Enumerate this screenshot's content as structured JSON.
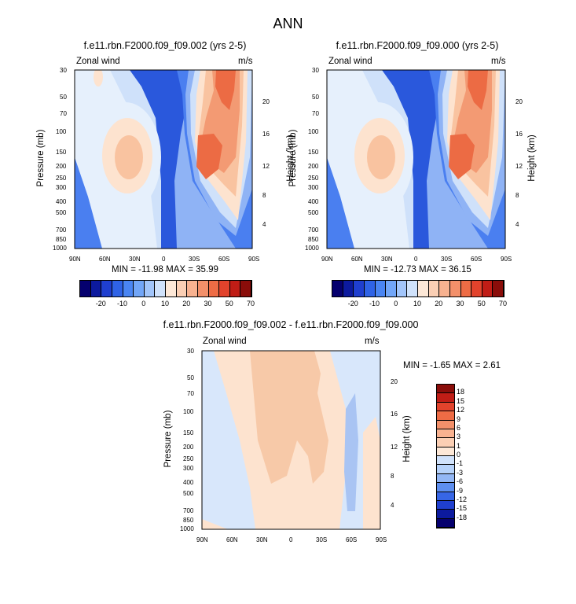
{
  "title": "ANN",
  "panels": [
    {
      "id": "top-left",
      "title": "f.e11.rbn.F2000.f09_f09.002 (yrs 2-5)",
      "left_label": "Zonal wind",
      "right_label": "m/s",
      "ylabel": "Pressure (mb)",
      "ylabel_right": "Height (km)",
      "minmax": "MIN = -11.98  MAX = 35.99"
    },
    {
      "id": "top-right",
      "title": "f.e11.rbn.F2000.f09_f09.000 (yrs 2-5)",
      "left_label": "Zonal wind",
      "right_label": "m/s",
      "ylabel": "Pressure (mb)",
      "ylabel_right": "Height (km)",
      "minmax": "MIN = -12.73  MAX =  36.15"
    },
    {
      "id": "bottom",
      "title": "f.e11.rbn.F2000.f09_f09.002 - f.e11.rbn.F2000.f09_f09.000",
      "left_label": "Zonal wind",
      "right_label": "m/s",
      "ylabel": "Pressure (mb)",
      "ylabel_right": "Height (km)",
      "minmax": "MIN =  -1.65  MAX =  2.61"
    }
  ],
  "chart_data": [
    {
      "type": "heatmap",
      "title": "f.e11.rbn.F2000.f09_f09.002 (yrs 2-5)",
      "xlabel": "",
      "ylabel": "Pressure (mb)",
      "x_ticks": [
        "90N",
        "60N",
        "30N",
        "0",
        "30S",
        "60S",
        "90S"
      ],
      "y_ticks": [
        30,
        50,
        70,
        100,
        150,
        200,
        250,
        300,
        400,
        500,
        700,
        850,
        1000
      ],
      "y_ticks_right": [
        4,
        8,
        12,
        16,
        20
      ],
      "ylim": [
        1000,
        30
      ],
      "y_scale": "log",
      "min": -11.98,
      "max": 35.99,
      "features": [
        {
          "lat": 32,
          "p": 200,
          "value": 20
        },
        {
          "lat": -35,
          "p": 180,
          "value": 30
        },
        {
          "lat": -50,
          "p": 30,
          "value": 35
        },
        {
          "lat": 0,
          "p": 40,
          "value": -10
        },
        {
          "lat": 85,
          "p": 40,
          "value": 10
        }
      ]
    },
    {
      "type": "heatmap",
      "title": "f.e11.rbn.F2000.f09_f09.000 (yrs 2-5)",
      "xlabel": "",
      "ylabel": "Pressure (mb)",
      "x_ticks": [
        "90N",
        "60N",
        "30N",
        "0",
        "30S",
        "60S",
        "90S"
      ],
      "y_ticks": [
        30,
        50,
        70,
        100,
        150,
        200,
        250,
        300,
        400,
        500,
        700,
        850,
        1000
      ],
      "y_ticks_right": [
        4,
        8,
        12,
        16,
        20
      ],
      "ylim": [
        1000,
        30
      ],
      "y_scale": "log",
      "min": -12.73,
      "max": 36.15,
      "features": [
        {
          "lat": 32,
          "p": 200,
          "value": 20
        },
        {
          "lat": -35,
          "p": 180,
          "value": 30
        },
        {
          "lat": -50,
          "p": 30,
          "value": 35
        },
        {
          "lat": 0,
          "p": 40,
          "value": -10
        },
        {
          "lat": 85,
          "p": 40,
          "value": 10
        }
      ]
    },
    {
      "type": "heatmap",
      "title": "f.e11.rbn.F2000.f09_f09.002 - f.e11.rbn.F2000.f09_f09.000",
      "xlabel": "",
      "ylabel": "Pressure (mb)",
      "x_ticks": [
        "90N",
        "60N",
        "30N",
        "0",
        "30S",
        "60S",
        "90S"
      ],
      "y_ticks": [
        30,
        50,
        70,
        100,
        150,
        200,
        250,
        300,
        400,
        500,
        700,
        850,
        1000
      ],
      "y_ticks_right": [
        4,
        8,
        12,
        16,
        20
      ],
      "ylim": [
        1000,
        30
      ],
      "y_scale": "log",
      "min": -1.65,
      "max": 2.61
    }
  ],
  "colorbar_abs": {
    "labels": [
      "-20",
      "-10",
      "0",
      "10",
      "20",
      "30",
      "50",
      "70"
    ],
    "colors": [
      "#05006e",
      "#0c1a9e",
      "#1f3fcf",
      "#2f63e6",
      "#4a85f2",
      "#72a6f7",
      "#a2c5fa",
      "#d0e2fb",
      "#fde8d7",
      "#fbcfb4",
      "#f8b290",
      "#f3906a",
      "#ee6c45",
      "#e2432c",
      "#c01d16",
      "#8a0d0a"
    ]
  },
  "colorbar_diff": {
    "labels": [
      "18",
      "15",
      "12",
      "9",
      "6",
      "3",
      "1",
      "0",
      "-1",
      "-3",
      "-6",
      "-9",
      "-12",
      "-15",
      "-18"
    ],
    "colors": [
      "#8a0d0a",
      "#c01d16",
      "#e2432c",
      "#ee6c45",
      "#f3906a",
      "#f8b290",
      "#fbcfb4",
      "#fde8d7",
      "#d0e2fb",
      "#b6d2fa",
      "#93b7f5",
      "#5e8ff0",
      "#3766e6",
      "#1f3fcf",
      "#0c1a9e",
      "#05006e"
    ]
  },
  "palette": {
    "deep_blue": "#2a58dc",
    "mid_blue": "#4a7ff0",
    "light_blue": "#8fb3f5",
    "pale_blue": "#cfe1fa",
    "very_pale_blue": "#e6f0fc",
    "pale_orange": "#fde3cf",
    "light_orange": "#f9c3a0",
    "orange": "#f39a73",
    "deep_orange": "#ec6b44"
  }
}
